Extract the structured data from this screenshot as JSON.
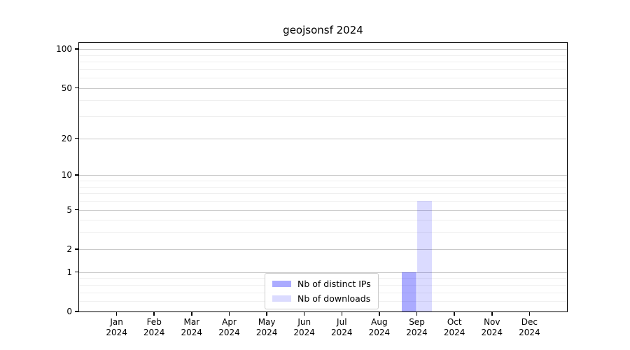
{
  "chart_data": {
    "type": "bar",
    "title": "geojsonsf 2024",
    "categories": [
      "Jan 2024",
      "Feb 2024",
      "Mar 2024",
      "Apr 2024",
      "May 2024",
      "Jun 2024",
      "Jul 2024",
      "Aug 2024",
      "Sep 2024",
      "Oct 2024",
      "Nov 2024",
      "Dec 2024"
    ],
    "series": [
      {
        "name": "Nb of distinct IPs",
        "color": "rgba(0,0,255,0.33)",
        "values": [
          0,
          0,
          0,
          0,
          0,
          0,
          0,
          0,
          1,
          0,
          0,
          0
        ]
      },
      {
        "name": "Nb of downloads",
        "color": "rgba(0,0,255,0.14)",
        "values": [
          0,
          0,
          0,
          0,
          0,
          0,
          0,
          0,
          6,
          0,
          0,
          0
        ]
      }
    ],
    "xlabel": "",
    "ylabel": "",
    "yscale": "log1p",
    "ylim": [
      0,
      112
    ],
    "y_major_ticks": [
      0,
      1,
      2,
      5,
      10,
      20,
      50,
      100
    ],
    "y_minor_ticks": [
      0.2,
      0.4,
      0.6,
      0.8,
      3,
      4,
      6,
      7,
      8,
      9,
      30,
      40,
      60,
      70,
      80,
      90
    ],
    "grid": true,
    "grid_color_major": "#c9c9c9",
    "grid_color_minor": "#efefef",
    "axis_color": "#000000",
    "legend_position": "lower center"
  }
}
